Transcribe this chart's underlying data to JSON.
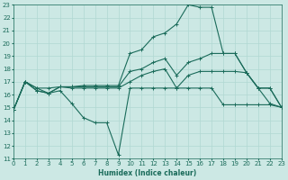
{
  "xlabel": "Humidex (Indice chaleur)",
  "xlim": [
    0,
    23
  ],
  "ylim": [
    11,
    23
  ],
  "xticks": [
    0,
    1,
    2,
    3,
    4,
    5,
    6,
    7,
    8,
    9,
    10,
    11,
    12,
    13,
    14,
    15,
    16,
    17,
    18,
    19,
    20,
    21,
    22,
    23
  ],
  "yticks": [
    11,
    12,
    13,
    14,
    15,
    16,
    17,
    18,
    19,
    20,
    21,
    22,
    23
  ],
  "bg_color": "#cce8e4",
  "line_color": "#1a6b5a",
  "grid_color": "#b0d8d2",
  "lines": [
    {
      "x": [
        0,
        1,
        2,
        3,
        4,
        5,
        6,
        7,
        8,
        9,
        10,
        11,
        12,
        13,
        14,
        15,
        16,
        17,
        18,
        19,
        20,
        21,
        22,
        23
      ],
      "y": [
        14.8,
        17.0,
        16.5,
        16.1,
        16.3,
        15.3,
        14.2,
        13.8,
        13.8,
        11.3,
        16.5,
        16.5,
        16.5,
        16.5,
        16.5,
        16.5,
        16.5,
        16.5,
        15.2,
        15.2,
        15.2,
        15.2,
        15.2,
        15.0
      ]
    },
    {
      "x": [
        0,
        1,
        2,
        3,
        4,
        5,
        6,
        7,
        8,
        9,
        10,
        11,
        12,
        13,
        14,
        15,
        16,
        17,
        18,
        19,
        20,
        21,
        22,
        23
      ],
      "y": [
        14.8,
        17.0,
        16.5,
        16.5,
        16.6,
        16.6,
        16.7,
        16.7,
        16.7,
        16.7,
        19.2,
        19.5,
        20.5,
        20.8,
        21.5,
        23.0,
        22.8,
        22.8,
        19.2,
        19.2,
        17.7,
        16.5,
        15.3,
        15.0
      ]
    },
    {
      "x": [
        0,
        1,
        2,
        3,
        4,
        5,
        6,
        7,
        8,
        9,
        10,
        11,
        12,
        13,
        14,
        15,
        16,
        17,
        18,
        19,
        20,
        21,
        22,
        23
      ],
      "y": [
        14.8,
        17.0,
        16.3,
        16.1,
        16.6,
        16.6,
        16.6,
        16.6,
        16.6,
        16.6,
        17.8,
        18.0,
        18.5,
        18.8,
        17.5,
        18.5,
        18.8,
        19.2,
        19.2,
        19.2,
        17.7,
        16.5,
        16.5,
        15.0
      ]
    },
    {
      "x": [
        0,
        1,
        2,
        3,
        4,
        5,
        6,
        7,
        8,
        9,
        10,
        11,
        12,
        13,
        14,
        15,
        16,
        17,
        18,
        19,
        20,
        21,
        22,
        23
      ],
      "y": [
        14.8,
        17.0,
        16.3,
        16.1,
        16.6,
        16.5,
        16.5,
        16.5,
        16.5,
        16.5,
        17.0,
        17.5,
        17.8,
        18.0,
        16.5,
        17.5,
        17.8,
        17.8,
        17.8,
        17.8,
        17.7,
        16.5,
        16.5,
        15.0
      ]
    }
  ]
}
